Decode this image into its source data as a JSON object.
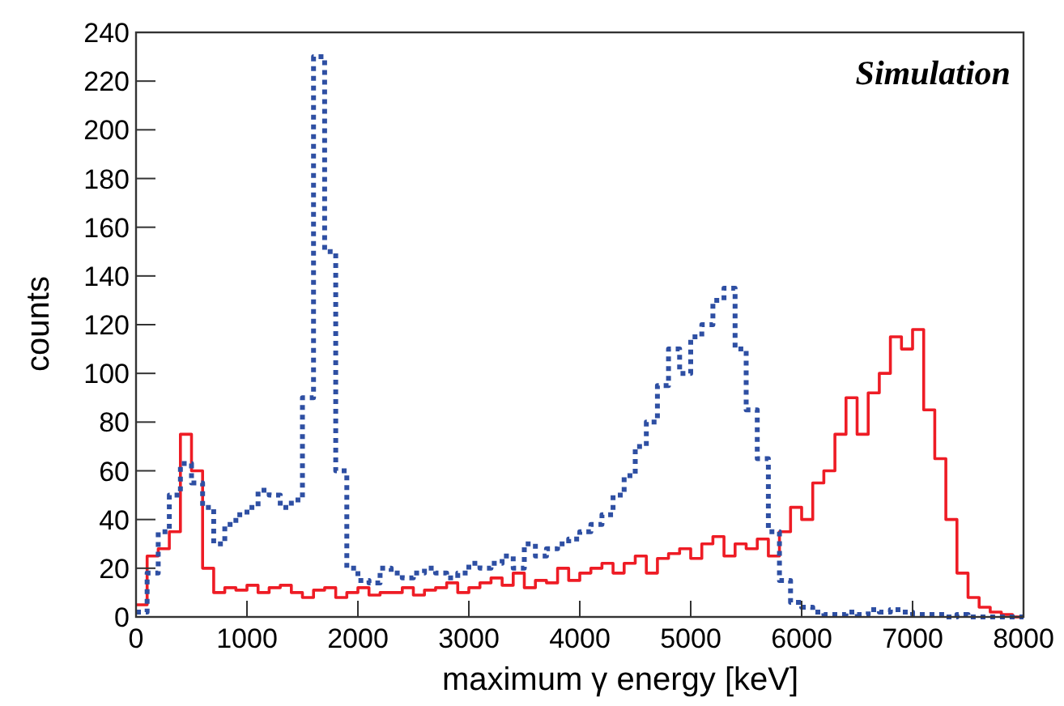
{
  "chart_data": {
    "type": "histogram",
    "xlabel": "maximum γ energy [keV]",
    "ylabel": "counts",
    "annotations": [
      "Simulation"
    ],
    "bins": [
      0,
      100,
      200,
      300,
      400,
      500,
      600,
      700,
      800,
      900,
      1000,
      1100,
      1200,
      1300,
      1400,
      1500,
      1600,
      1700,
      1800,
      1900,
      2000,
      2100,
      2200,
      2300,
      2400,
      2500,
      2600,
      2700,
      2800,
      2900,
      3000,
      3100,
      3200,
      3300,
      3400,
      3500,
      3600,
      3700,
      3800,
      3900,
      4000,
      4100,
      4200,
      4300,
      4400,
      4500,
      4600,
      4700,
      4800,
      4900,
      5000,
      5100,
      5200,
      5300,
      5400,
      5500,
      5600,
      5700,
      5800,
      5900,
      6000,
      6100,
      6200,
      6300,
      6400,
      6500,
      6600,
      6700,
      6800,
      6900,
      7000,
      7100,
      7200,
      7300,
      7400,
      7500,
      7600,
      7700,
      7800,
      7900,
      8000
    ],
    "series": [
      {
        "color": "#ee1c25",
        "line_style": "solid",
        "values": [
          5,
          25,
          28,
          35,
          75,
          60,
          20,
          10,
          12,
          11,
          13,
          10,
          12,
          13,
          10,
          8,
          11,
          12,
          8,
          10,
          12,
          9,
          10,
          10,
          12,
          9,
          11,
          12,
          14,
          10,
          12,
          14,
          16,
          13,
          18,
          12,
          15,
          14,
          20,
          15,
          18,
          20,
          22,
          18,
          22,
          25,
          18,
          24,
          26,
          28,
          24,
          30,
          33,
          25,
          30,
          28,
          32,
          25,
          35,
          45,
          40,
          55,
          60,
          75,
          90,
          75,
          92,
          100,
          115,
          110,
          118,
          85,
          65,
          40,
          18,
          8,
          4,
          2,
          1,
          0
        ]
      },
      {
        "color": "#2e4fa3",
        "line_style": "dotted",
        "values": [
          2,
          18,
          35,
          50,
          63,
          55,
          45,
          30,
          38,
          42,
          45,
          52,
          50,
          45,
          48,
          90,
          230,
          150,
          60,
          20,
          15,
          14,
          20,
          18,
          16,
          18,
          20,
          18,
          16,
          18,
          22,
          20,
          22,
          25,
          20,
          30,
          25,
          28,
          30,
          32,
          35,
          38,
          42,
          50,
          58,
          70,
          80,
          95,
          110,
          100,
          115,
          120,
          130,
          135,
          110,
          85,
          65,
          35,
          15,
          6,
          4,
          2,
          1,
          1,
          2,
          1,
          3,
          2,
          3,
          2,
          1,
          1,
          1,
          0,
          1,
          0,
          0,
          0,
          0,
          0
        ]
      }
    ],
    "xlim": [
      0,
      8000
    ],
    "xticks": [
      0,
      1000,
      2000,
      3000,
      4000,
      5000,
      6000,
      7000,
      8000
    ],
    "ylim": [
      0,
      240
    ],
    "yticks": [
      0,
      20,
      40,
      60,
      80,
      100,
      120,
      140,
      160,
      180,
      200,
      220,
      240
    ],
    "grid": false
  }
}
